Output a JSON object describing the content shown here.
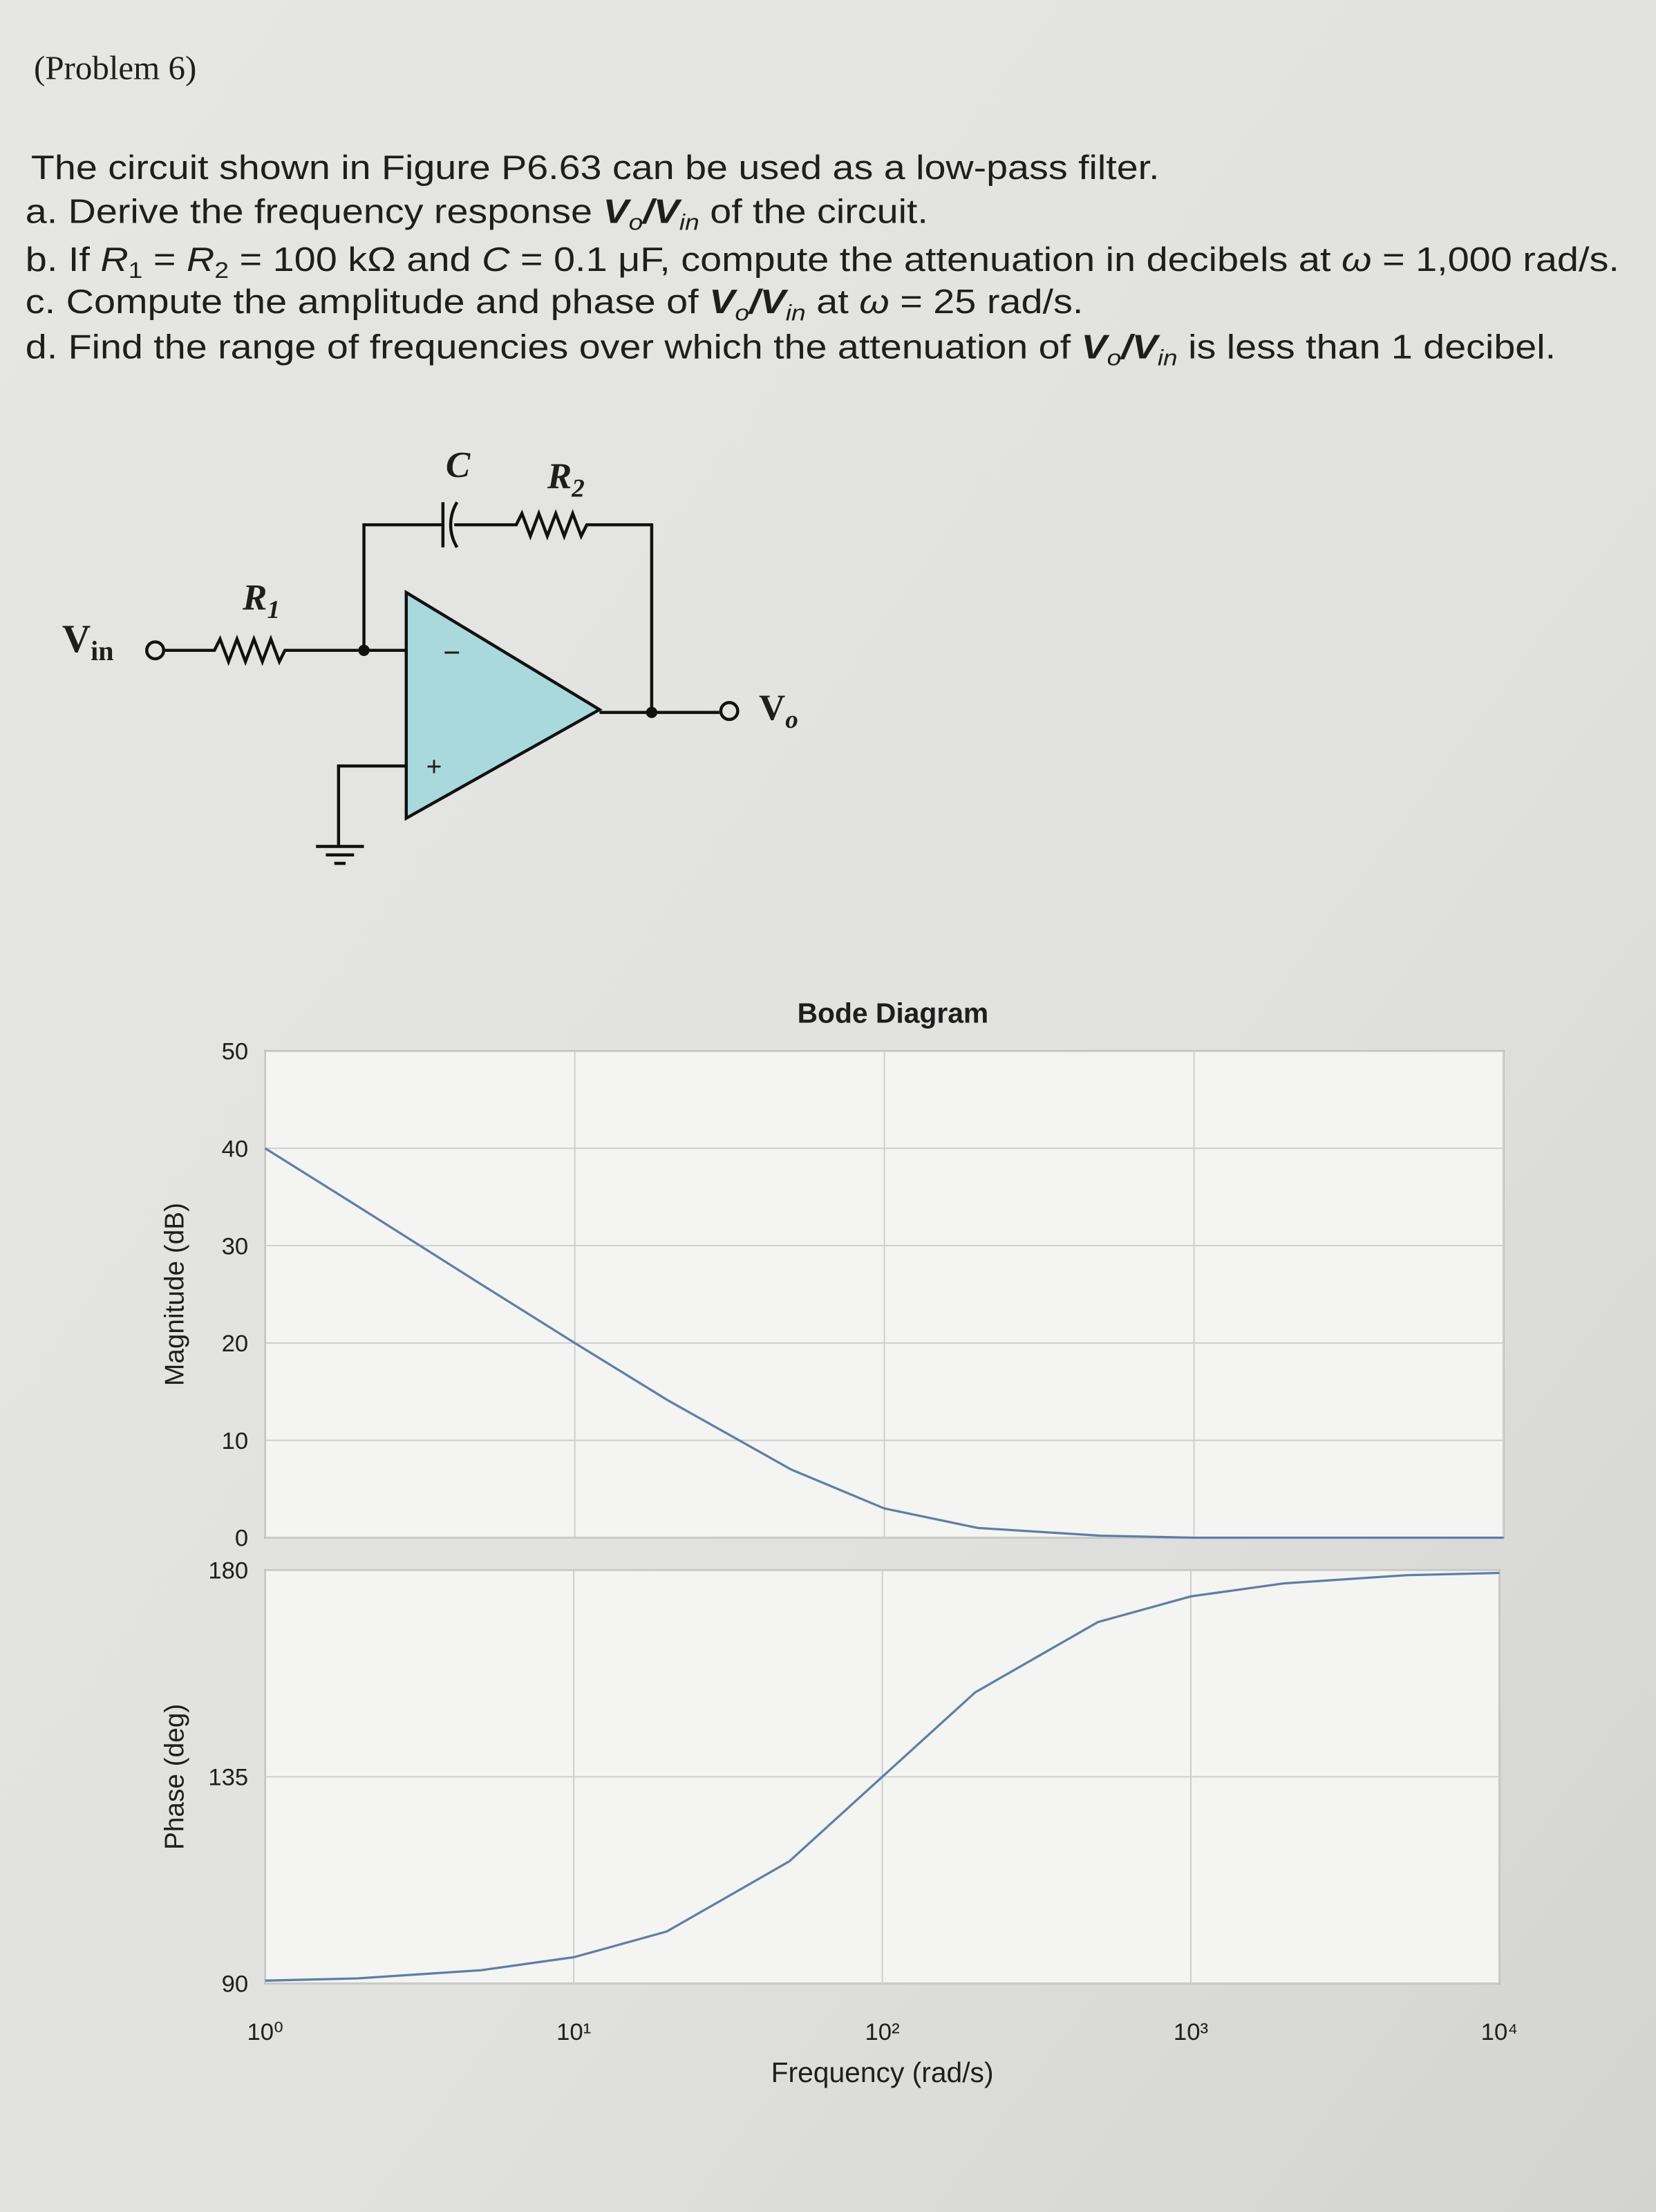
{
  "problem": {
    "label": "(Problem 6)",
    "intro": "The circuit shown in Figure P6.63 can be used as a low-pass filter.",
    "items": [
      [
        "a. Derive the frequency response ",
        "V",
        "o",
        "/V",
        "in",
        " of the circuit."
      ],
      [
        "b. If ",
        "R",
        "1",
        " = ",
        "R",
        "2",
        " = 100 kΩ and ",
        "C",
        " = 0.1 μF, compute the attenuation in decibels at ",
        "ω",
        " = 1,000 rad/s."
      ],
      [
        "c. Compute the amplitude and phase of ",
        "V",
        "o",
        "/V",
        "in",
        " at ",
        "ω",
        " = 25 rad/s."
      ],
      [
        "d. Find the range of frequencies over which the attenuation of ",
        "V",
        "o",
        "/V",
        "in",
        " is less than 1 decibel."
      ]
    ]
  },
  "circuit": {
    "capacitor": "C",
    "feedback_resistor": [
      "R",
      "2"
    ],
    "input_resistor": [
      "R",
      "1"
    ],
    "input": [
      "V",
      "in"
    ],
    "output": [
      "V",
      "o"
    ],
    "inverting": "−",
    "noninverting": "+"
  },
  "chart_data": [
    {
      "type": "line",
      "title": "Bode Diagram",
      "ylabel": "Magnitude (dB)",
      "x": [
        1,
        2,
        5,
        10,
        20,
        50,
        100,
        200,
        500,
        1000,
        2000,
        5000,
        10000
      ],
      "series": [
        {
          "color": "#5d7fa6",
          "values": [
            40.0,
            34.0,
            26.0,
            20.0,
            14.1,
            7.0,
            3.0,
            1.0,
            0.2,
            0.0,
            0.0,
            0.0,
            0.0
          ]
        }
      ],
      "xlim": [
        1,
        10000
      ],
      "ylim": [
        0,
        50
      ],
      "yticks": [
        0,
        10,
        20,
        30,
        40,
        50
      ],
      "log_x": true,
      "grid": true
    },
    {
      "type": "line",
      "ylabel": "Phase (deg)",
      "xlabel": "Frequency (rad/s)",
      "x": [
        1,
        2,
        5,
        10,
        20,
        50,
        100,
        200,
        500,
        1000,
        2000,
        5000,
        10000
      ],
      "series": [
        {
          "color": "#5d7fa6",
          "values": [
            90.6,
            91.1,
            92.9,
            95.7,
            101.3,
            116.6,
            135,
            153.4,
            168.7,
            174.3,
            177.1,
            178.9,
            179.4
          ]
        }
      ],
      "xlim": [
        1,
        10000
      ],
      "xticks": [
        {
          "value": 1,
          "label": "10⁰"
        },
        {
          "value": 10,
          "label": "10¹"
        },
        {
          "value": 100,
          "label": "10²"
        },
        {
          "value": 1000,
          "label": "10³"
        },
        {
          "value": 10000,
          "label": "10⁴"
        }
      ],
      "ylim": [
        90,
        180
      ],
      "yticks": [
        90,
        135,
        180
      ],
      "log_x": true,
      "grid": true
    }
  ]
}
